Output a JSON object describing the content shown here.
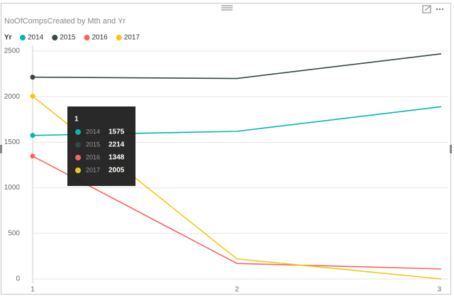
{
  "chart_data": {
    "type": "line",
    "title": "NoOfCompsCreated by Mth and Yr",
    "legend_title": "Yr",
    "categories": [
      "1",
      "2",
      "3"
    ],
    "series": [
      {
        "name": "2014",
        "color": "#01B8AA",
        "values": [
          1575,
          1620,
          1890
        ]
      },
      {
        "name": "2015",
        "color": "#374649",
        "values": [
          2214,
          2200,
          2470
        ]
      },
      {
        "name": "2016",
        "color": "#FD625E",
        "values": [
          1348,
          170,
          110
        ]
      },
      {
        "name": "2017",
        "color": "#F2C80F",
        "values": [
          2005,
          220,
          0
        ]
      }
    ],
    "ylim": [
      0,
      2500
    ],
    "yticks": [
      0,
      500,
      1000,
      1500,
      2000,
      2500
    ],
    "grid": true,
    "legend_position": "top-left"
  }
}
